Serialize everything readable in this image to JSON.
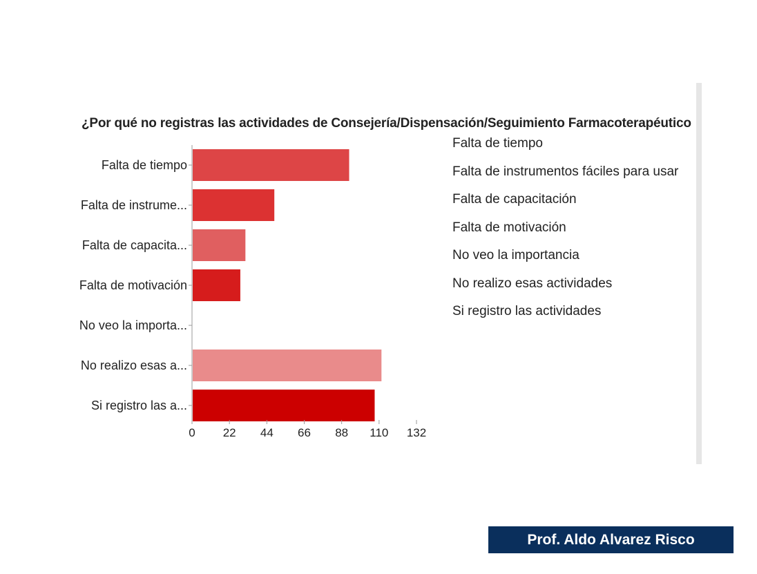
{
  "chart_data": {
    "type": "bar",
    "orientation": "horizontal",
    "title": "¿Por qué no registras las actividades de Consejería/Dispensación/Seguimiento Farmacoterapéutico que rea",
    "categories": [
      "Falta de tiempo",
      "Falta de instrume...",
      "Falta de capacita...",
      "Falta de motivación",
      "No veo la importa...",
      "No realizo esas a...",
      "Si registro las a..."
    ],
    "values": [
      92,
      48,
      31,
      28,
      0,
      111,
      107
    ],
    "colors": [
      "#dd4546",
      "#dc3232",
      "#e05f60",
      "#d61c1c",
      "#e57373",
      "#e98b8b",
      "#cc0000"
    ],
    "xlim": [
      0,
      132
    ],
    "xticks": [
      "0",
      "22",
      "44",
      "66",
      "88",
      "110",
      "132"
    ],
    "legend": {
      "placement": "right",
      "entries": [
        "Falta de tiempo",
        "Falta de instrumentos fáciles para usar",
        "Falta de capacitación",
        "Falta de motivación",
        "No veo la importancia",
        "No realizo esas actividades",
        "Si registro las actividades"
      ]
    },
    "grid": false
  },
  "footer": {
    "credit": "Prof. Aldo Alvarez Risco"
  }
}
